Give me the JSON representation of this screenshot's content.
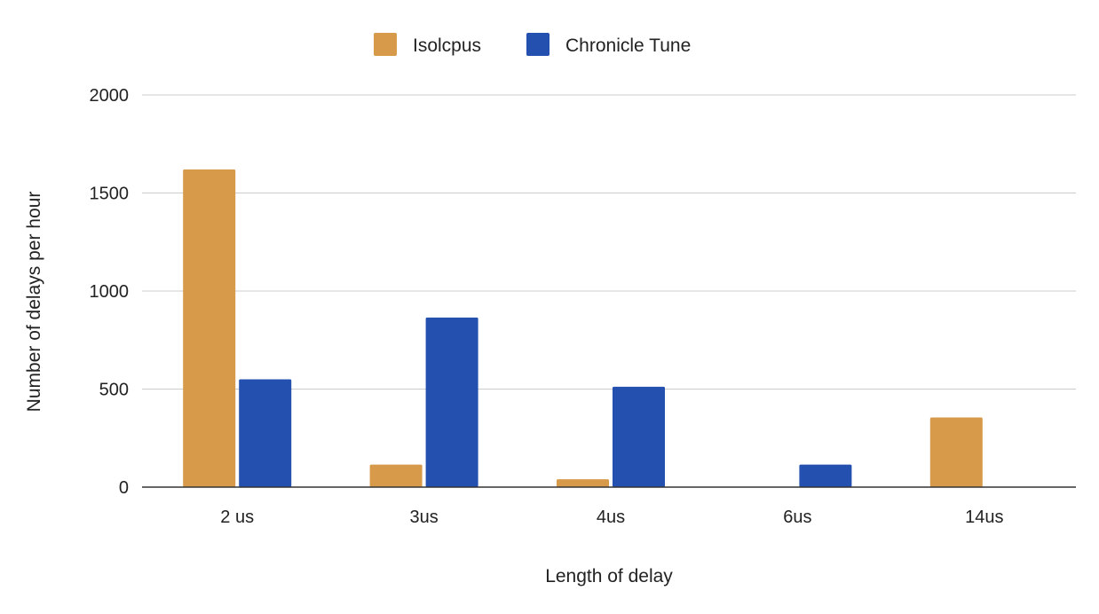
{
  "chart_data": {
    "type": "bar",
    "categories": [
      "2 us",
      "3us",
      "4us",
      "6us",
      "14us"
    ],
    "series": [
      {
        "name": "Isolcpus",
        "color": "#d69a4a",
        "values": [
          1620,
          115,
          40,
          0,
          355
        ]
      },
      {
        "name": "Chronicle Tune",
        "color": "#2450b0",
        "values": [
          550,
          865,
          512,
          115,
          0
        ]
      }
    ],
    "xlabel": "Length of delay",
    "ylabel": "Number of delays per hour",
    "ylim": [
      0,
      2000
    ],
    "yticks": [
      0,
      500,
      1000,
      1500,
      2000
    ],
    "grid": true,
    "legend_position": "top-center"
  }
}
